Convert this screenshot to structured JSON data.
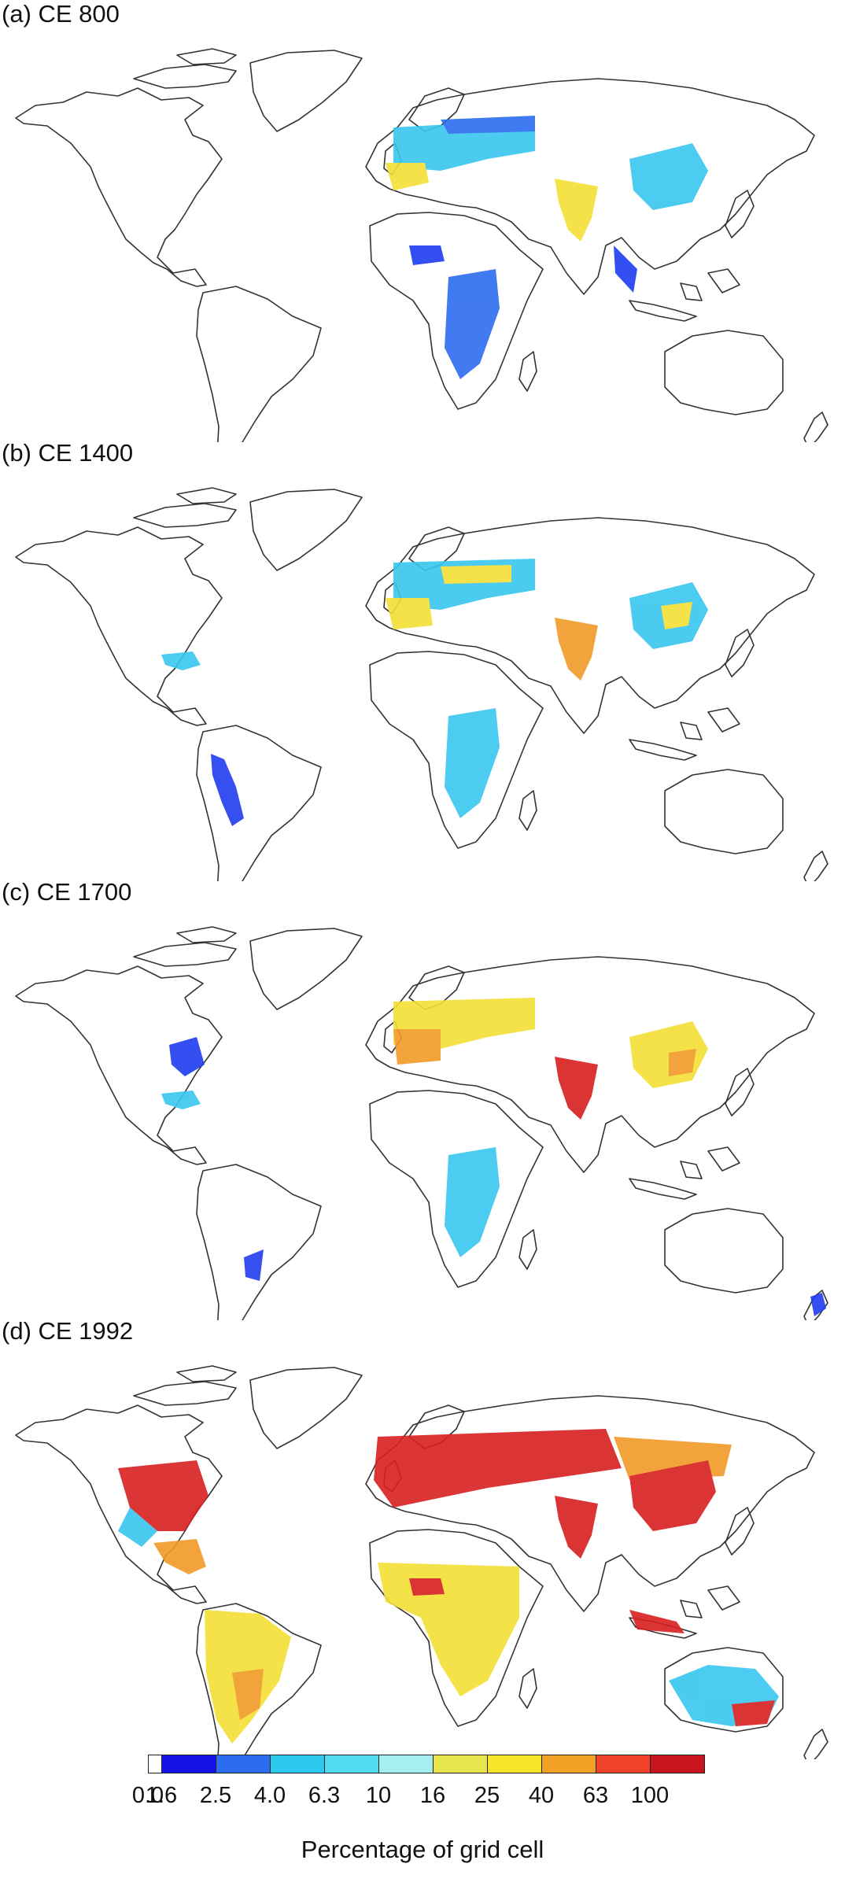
{
  "panels": [
    {
      "label": "(a) CE 800"
    },
    {
      "label": "(b) CE 1400"
    },
    {
      "label": "(c) CE 1700"
    },
    {
      "label": "(d) CE 1992"
    }
  ],
  "legend": {
    "title": "Percentage of grid cell",
    "ticks": [
      "0.0",
      "1.6",
      "2.5",
      "4.0",
      "6.3",
      "10",
      "16",
      "25",
      "40",
      "63",
      "100"
    ],
    "colors": [
      "#ffffff",
      "#1414e6",
      "#2c6cf0",
      "#2cc8ee",
      "#52dcf2",
      "#a6eef0",
      "#e8e44c",
      "#f6e42a",
      "#f2a024",
      "#f0422a",
      "#c8141e"
    ]
  },
  "colors": {
    "coast": "#333333",
    "blue": "#1f3cf0",
    "cyan": "#38c6ee",
    "yellow": "#f3df35",
    "orange": "#f19a28",
    "red": "#d71f1f"
  }
}
